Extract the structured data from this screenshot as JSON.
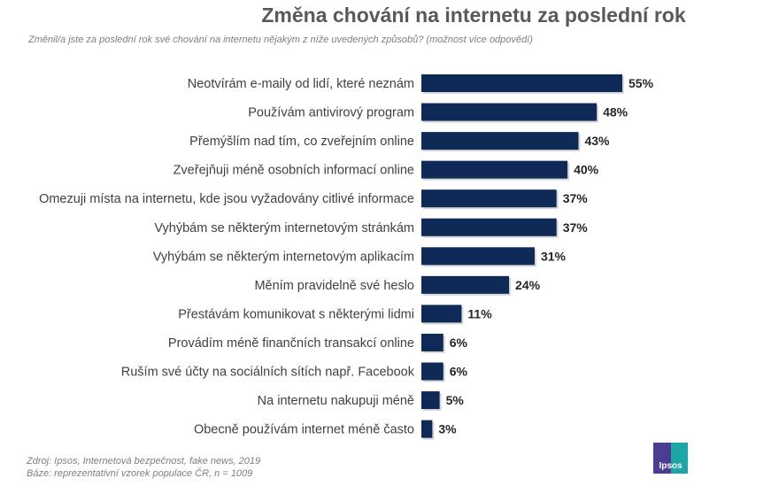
{
  "chart_data": {
    "type": "bar",
    "orientation": "horizontal",
    "title": "Změna chování na internetu za poslední rok",
    "subtitle": "Změnil/a jste za poslední rok své chování na internetu nějakým z níže uvedených způsobů? (možnost více odpovědí)",
    "categories": [
      "Neotvírám e-maily od lidí, které neznám",
      "Používám antivirový program",
      "Přemýšlím nad tím, co zveřejním online",
      "Zveřejňuji méně osobních informací online",
      "Omezuji místa na internetu, kde jsou vyžadovány  citlivé informace",
      "Vyhýbám se některým internetovým stránkám",
      "Vyhýbám se některým internetovým aplikacím",
      "Měním pravidelně své heslo",
      "Přestávám komunikovat s některými lidmi",
      "Provádím méně finančních transakcí online",
      "Ruším své účty na sociálních sítích např. Facebook",
      "Na internetu nakupuji méně",
      "Obecně používám internet méně často"
    ],
    "values": [
      55,
      48,
      43,
      40,
      37,
      37,
      31,
      24,
      11,
      6,
      6,
      5,
      3
    ],
    "value_labels": [
      "55%",
      "48%",
      "43%",
      "40%",
      "37%",
      "37%",
      "31%",
      "24%",
      "11%",
      "6%",
      "6%",
      "5%",
      "3%"
    ],
    "unit": "%",
    "xlim": [
      0,
      55
    ],
    "grid": false,
    "legend": "none",
    "bar_color": "#0f2a57"
  },
  "footer": {
    "source": "Zdroj: Ipsos, Internetová bezpečnost, fake news, 2019",
    "base": "Báze: reprezentativní vzorek populace ČR, n = 1009"
  },
  "logo": {
    "text": "Ipsos",
    "color_left": "#4b3d91",
    "color_right": "#1ea5a5"
  }
}
